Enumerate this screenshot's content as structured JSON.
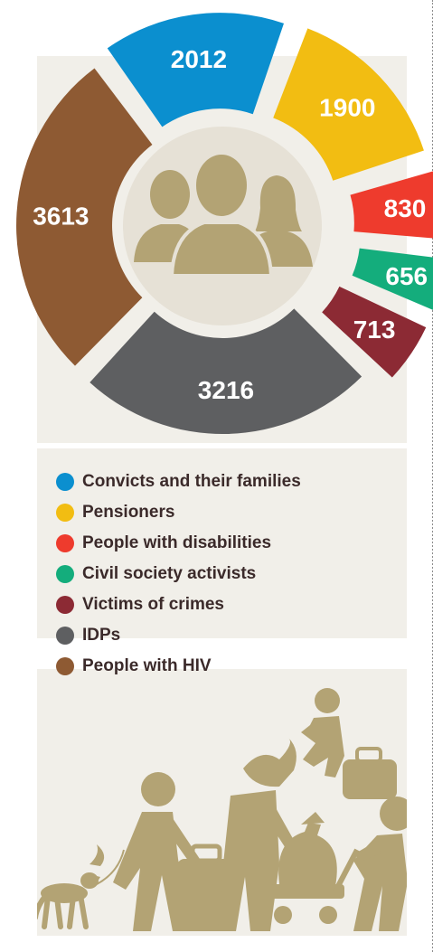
{
  "chart_data": {
    "type": "pie",
    "variant": "exploded-donut",
    "title": "",
    "legend_position": "bottom",
    "slices": [
      {
        "label": "Convicts and their families",
        "value": 2012,
        "color": "#0b8fcf"
      },
      {
        "label": "Pensioners",
        "value": 1900,
        "color": "#f2bd12"
      },
      {
        "label": "People with disabilities",
        "value": 830,
        "color": "#ee3b2d"
      },
      {
        "label": "Civil society activists",
        "value": 656,
        "color": "#14ad7c"
      },
      {
        "label": "Victims of crimes",
        "value": 713,
        "color": "#8c2a34"
      },
      {
        "label": "IDPs",
        "value": 3216,
        "color": "#5e5f61"
      },
      {
        "label": "People with HIV",
        "value": 3613,
        "color": "#8e5a33"
      }
    ]
  },
  "icons": {
    "center": "people-group-icon",
    "illustration": "refugees-walking-icon"
  },
  "colors": {
    "panel_bg": "#f1efe9",
    "icon_color": "#b3a374",
    "legend_text": "#3b2a2a"
  }
}
